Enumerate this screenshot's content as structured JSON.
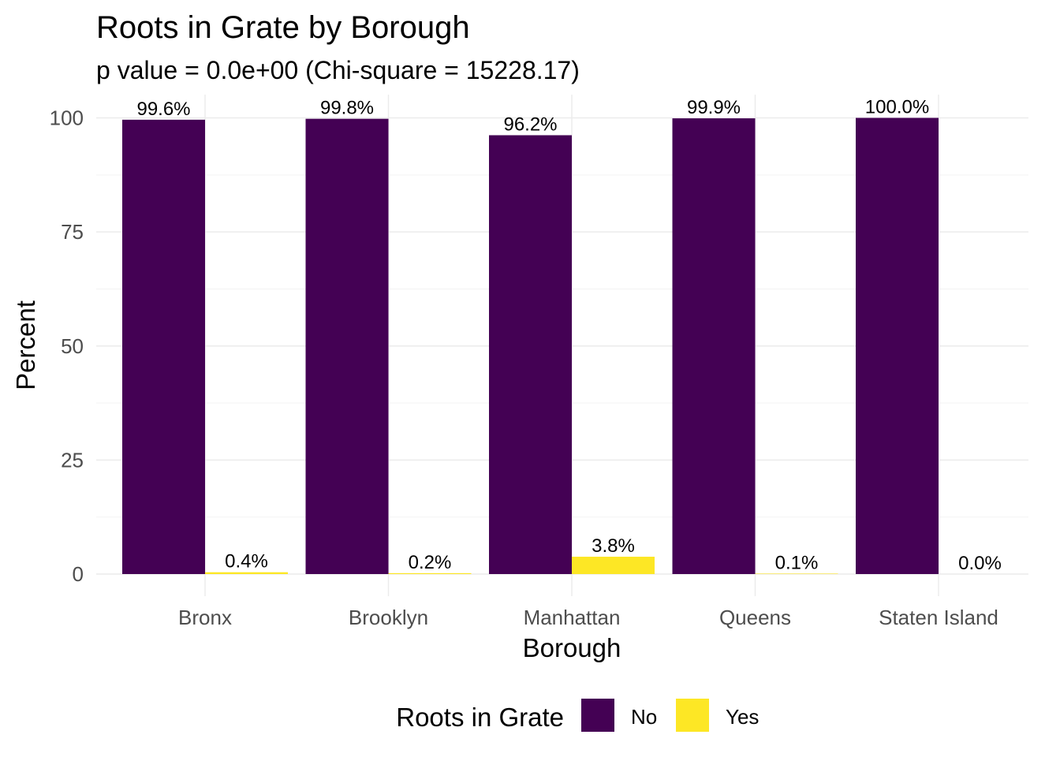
{
  "chart_data": {
    "type": "bar",
    "title": "Roots in Grate by Borough",
    "subtitle": "p value = 0.0e+00 (Chi-square = 15228.17)",
    "xlabel": "Borough",
    "ylabel": "Percent",
    "ylim": [
      0,
      100
    ],
    "yticks": [
      "0",
      "25",
      "50",
      "75",
      "100"
    ],
    "grid": true,
    "legend_title": "Roots in Grate",
    "legend_position": "bottom",
    "categories": [
      "Bronx",
      "Brooklyn",
      "Manhattan",
      "Queens",
      "Staten Island"
    ],
    "series": [
      {
        "name": "No",
        "color": "#440154",
        "values": [
          99.6,
          99.8,
          96.2,
          99.9,
          100.0
        ],
        "labels": [
          "99.6%",
          "99.8%",
          "96.2%",
          "99.9%",
          "100.0%"
        ]
      },
      {
        "name": "Yes",
        "color": "#FDE725",
        "values": [
          0.4,
          0.2,
          3.8,
          0.1,
          0.0
        ],
        "labels": [
          "0.4%",
          "0.2%",
          "3.8%",
          "0.1%",
          "0.0%"
        ]
      }
    ]
  }
}
